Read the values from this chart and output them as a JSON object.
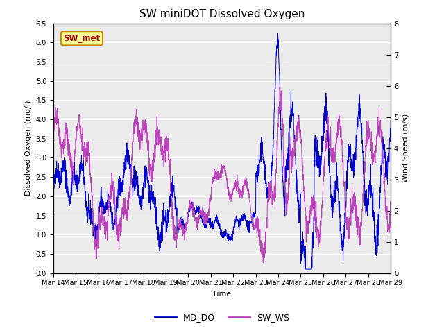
{
  "title": "SW miniDOT Dissolved Oxygen",
  "xlabel": "Time",
  "ylabel_left": "Dissolved Oxygen (mg/l)",
  "ylabel_right": "Wind Speed (m/s)",
  "ylim_left": [
    0.0,
    6.5
  ],
  "ylim_right": [
    0.0,
    8.0
  ],
  "yticks_left": [
    0.0,
    0.5,
    1.0,
    1.5,
    2.0,
    2.5,
    3.0,
    3.5,
    4.0,
    4.5,
    5.0,
    5.5,
    6.0,
    6.5
  ],
  "yticks_right": [
    0.0,
    1.0,
    2.0,
    3.0,
    4.0,
    5.0,
    6.0,
    7.0,
    8.0
  ],
  "line_do_color": "#0000CC",
  "line_ws_color": "#BB44BB",
  "legend_do": "MD_DO",
  "legend_ws": "SW_WS",
  "annotation_text": "SW_met",
  "annotation_color": "#AA0000",
  "annotation_bg": "#FFFF99",
  "annotation_border": "#CC8800",
  "bg_color": "#EBEBEB",
  "xtick_labels": [
    "Mar 14",
    "Mar 15",
    "Mar 16",
    "Mar 17",
    "Mar 18",
    "Mar 19",
    "Mar 20",
    "Mar 21",
    "Mar 22",
    "Mar 23",
    "Mar 24",
    "Mar 25",
    "Mar 26",
    "Mar 27",
    "Mar 28",
    "Mar 29"
  ],
  "title_fontsize": 11,
  "label_fontsize": 8,
  "tick_fontsize": 7,
  "legend_fontsize": 9
}
